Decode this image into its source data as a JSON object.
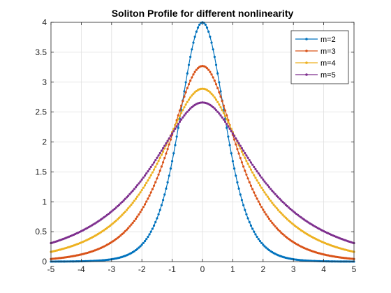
{
  "chart_data": {
    "type": "line",
    "title": "Soliton Profile for different nonlinearity",
    "xlabel": "",
    "ylabel": "",
    "xlim": [
      -5,
      5
    ],
    "ylim": [
      0,
      4
    ],
    "x_ticks": [
      "-5",
      "-4",
      "-3",
      "-2",
      "-1",
      "0",
      "1",
      "2",
      "3",
      "4",
      "5"
    ],
    "y_ticks": [
      "0",
      "0.5",
      "1",
      "1.5",
      "2",
      "2.5",
      "3",
      "3.5",
      "4"
    ],
    "grid": true,
    "legend_position": "top-right",
    "x_samples": {
      "start": -5,
      "end": 5,
      "count": 201
    },
    "profile": "peak * sech(x)^(2/(m-1))",
    "series": [
      {
        "name": "m=2",
        "m": 2,
        "peak": 4.0,
        "color": "#0072BD"
      },
      {
        "name": "m=3",
        "m": 3,
        "peak": 3.27,
        "color": "#D95319"
      },
      {
        "name": "m=4",
        "m": 4,
        "peak": 2.89,
        "color": "#EDB120"
      },
      {
        "name": "m=5",
        "m": 5,
        "peak": 2.66,
        "color": "#7E2F8E"
      }
    ]
  }
}
